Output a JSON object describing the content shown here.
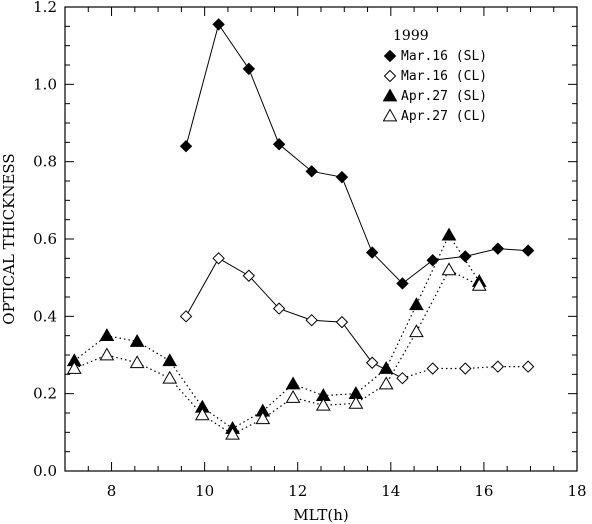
{
  "chart_data": {
    "type": "line",
    "title": "",
    "xlabel": "MLT(h)",
    "ylabel": "OPTICAL THICKNESS",
    "xlim": [
      7,
      18
    ],
    "ylim": [
      0,
      1.2
    ],
    "xticks": [
      8,
      10,
      12,
      14,
      16,
      18
    ],
    "yticks": [
      0.0,
      0.2,
      0.4,
      0.6,
      0.8,
      1.0,
      1.2
    ],
    "xtick_labels": [
      "8",
      "10",
      "12",
      "14",
      "16",
      "18"
    ],
    "ytick_labels": [
      "0.0",
      "0.2",
      "0.4",
      "0.6",
      "0.8",
      "1.0",
      "1.2"
    ],
    "grid": false,
    "legend_title": "1999",
    "legend_position": "top-right",
    "series": [
      {
        "name": "Mar.16 (SL)",
        "marker": "diamond-filled",
        "line": "solid",
        "x": [
          9.6,
          10.3,
          10.95,
          11.6,
          12.3,
          12.95,
          13.6,
          14.25,
          14.9,
          15.6,
          16.3,
          16.95
        ],
        "y": [
          0.84,
          1.155,
          1.04,
          0.845,
          0.775,
          0.76,
          0.565,
          0.485,
          0.545,
          0.555,
          0.575,
          0.57
        ]
      },
      {
        "name": "Mar.16 (CL)",
        "marker": "diamond-open",
        "line": "solid-then-dotted",
        "x": [
          9.6,
          10.3,
          10.95,
          11.6,
          12.3,
          12.95,
          13.6,
          14.25,
          14.9,
          15.6,
          16.3,
          16.95
        ],
        "y": [
          0.4,
          0.55,
          0.505,
          0.42,
          0.39,
          0.385,
          0.28,
          0.24,
          0.265,
          0.265,
          0.27,
          0.27
        ]
      },
      {
        "name": "Apr.27 (SL)",
        "marker": "triangle-filled",
        "line": "dotted",
        "x": [
          7.2,
          7.9,
          8.55,
          9.25,
          9.95,
          10.6,
          11.25,
          11.9,
          12.55,
          13.25,
          13.9,
          14.55,
          15.25,
          15.9
        ],
        "y": [
          0.285,
          0.35,
          0.335,
          0.285,
          0.165,
          0.11,
          0.155,
          0.225,
          0.195,
          0.2,
          0.265,
          0.43,
          0.61,
          0.49
        ]
      },
      {
        "name": "Apr.27 (CL)",
        "marker": "triangle-open",
        "line": "dotted",
        "x": [
          7.2,
          7.9,
          8.55,
          9.25,
          9.95,
          10.6,
          11.25,
          11.9,
          12.55,
          13.25,
          13.9,
          14.55,
          15.25,
          15.9
        ],
        "y": [
          0.265,
          0.3,
          0.28,
          0.24,
          0.145,
          0.095,
          0.135,
          0.19,
          0.17,
          0.175,
          0.225,
          0.36,
          0.52,
          0.48
        ]
      }
    ]
  }
}
